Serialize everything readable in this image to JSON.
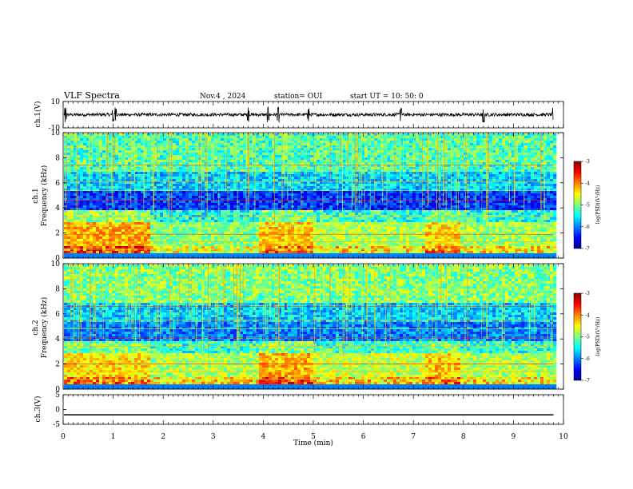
{
  "header": {
    "title": "VLF Spectra",
    "date": "Nov.4  , 2024",
    "station": "station= OUI",
    "start": "start  UT  =   10: 50: 0"
  },
  "chart_data": [
    {
      "type": "line",
      "name": "ch1-waveform",
      "ylabel": "ch.1(V)",
      "ylim": [
        -10,
        10
      ],
      "yticks": [
        "10",
        "-10"
      ],
      "xlim": [
        0,
        10
      ],
      "trace_end_min": 9.8,
      "noise_amplitude_v": 1.2,
      "spikes_min": [
        0.05,
        1.0,
        1.05,
        3.7,
        4.1,
        4.3,
        4.9,
        6.75,
        8.4,
        9.8
      ]
    },
    {
      "type": "heatmap",
      "name": "ch1-spectrogram",
      "ylabel_top": "ch.1",
      "ylabel": "Frequency  (kHz)",
      "ylim": [
        0,
        10
      ],
      "yticks": [
        "0",
        "2",
        "4",
        "6",
        "8",
        "10"
      ],
      "xlim": [
        0,
        10
      ],
      "data_end_min": 9.8,
      "segment_boundaries_min": [
        1.7,
        3.9,
        5.0,
        7.2,
        7.9
      ],
      "colorbar": {
        "label": "log(PSD)(V²/Hz)",
        "range": [
          -7,
          -3
        ],
        "ticks": [
          "-3",
          "-4",
          "-5",
          "-6",
          "-7"
        ]
      }
    },
    {
      "type": "heatmap",
      "name": "ch2-spectrogram",
      "ylabel_top": "ch.2",
      "ylabel": "Frequency  (kHz)",
      "ylim": [
        0,
        10
      ],
      "yticks": [
        "0",
        "2",
        "4",
        "6",
        "8",
        "10"
      ],
      "xlim": [
        0,
        10
      ],
      "data_end_min": 9.8,
      "segment_boundaries_min": [
        1.7,
        3.9,
        5.0,
        7.2,
        7.9
      ],
      "colorbar": {
        "label": "log(PSD)(V²/Hz)",
        "range": [
          -7,
          -3
        ],
        "ticks": [
          "-3",
          "-4",
          "-5",
          "-6",
          "-7"
        ]
      }
    },
    {
      "type": "line",
      "name": "ch3-waveform",
      "ylabel": "ch.3(V)",
      "ylim": [
        -5,
        5
      ],
      "yticks": [
        "5",
        "0",
        "-5"
      ],
      "xlim": [
        0,
        10
      ],
      "trace_end_min": 9.8,
      "constant_value_v": -1.8
    }
  ],
  "xaxis": {
    "label": "Time  (min)",
    "ticks": [
      "0",
      "1",
      "2",
      "3",
      "4",
      "5",
      "6",
      "7",
      "8",
      "9",
      "10"
    ]
  }
}
